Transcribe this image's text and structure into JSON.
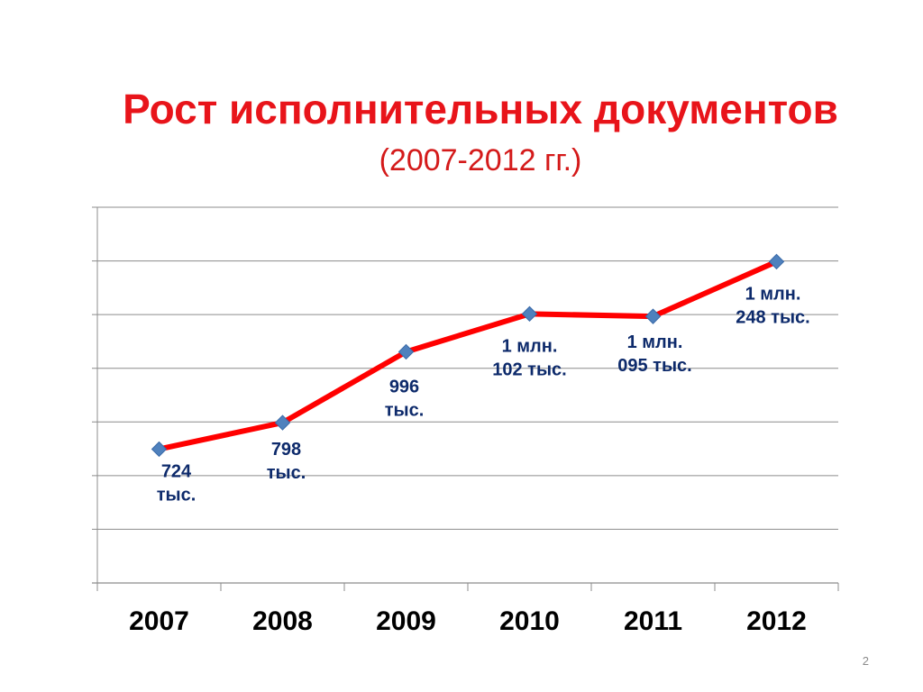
{
  "slide": {
    "page_number": "2"
  },
  "chart_data": {
    "type": "line",
    "title": "Рост исполнительных документов",
    "subtitle": "(2007-2012 гг.)",
    "categories": [
      "2007",
      "2008",
      "2009",
      "2010",
      "2011",
      "2012"
    ],
    "series": [
      {
        "values": [
          724,
          798,
          996,
          1102,
          1095,
          1248
        ],
        "labels": [
          [
            "724",
            "тыс."
          ],
          [
            "798",
            "тыс."
          ],
          [
            "996",
            "тыс."
          ],
          [
            "1 млн.",
            "102 тыс."
          ],
          [
            "1 млн.",
            "095 тыс."
          ],
          [
            "1 млн.",
            "248 тыс."
          ]
        ]
      }
    ],
    "unit": "тыс.",
    "ylim": [
      350,
      1400
    ],
    "grid": true,
    "colors": {
      "line": "#ff0000",
      "marker": "#4f81bd",
      "grid": "#8c8c8c",
      "label": "#0d2a6b",
      "title": "#e8141a"
    }
  }
}
